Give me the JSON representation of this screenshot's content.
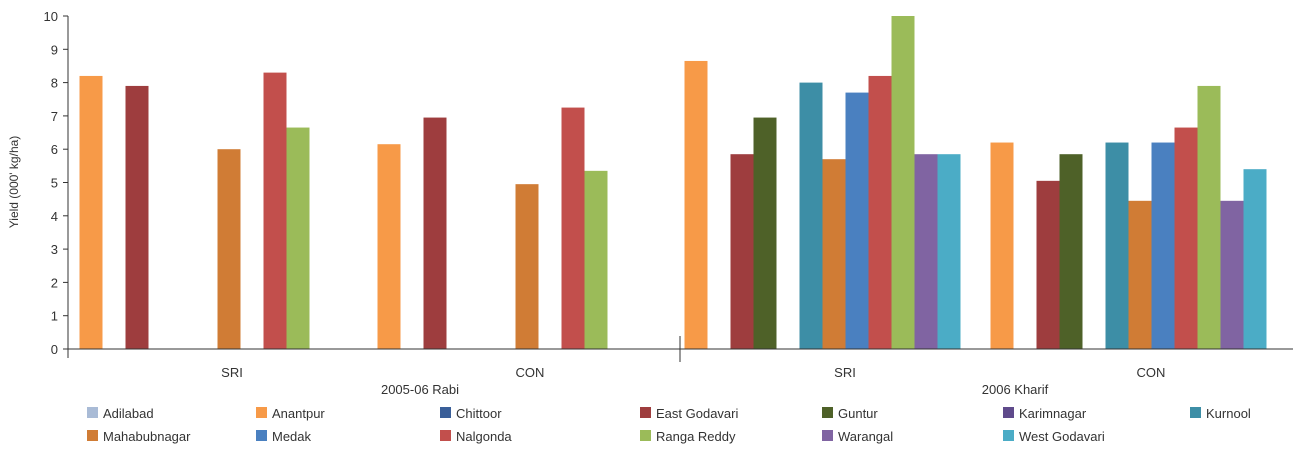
{
  "chart_data": {
    "type": "bar",
    "ylabel": "Yield (000' kg/ha)",
    "ylim": [
      0,
      10
    ],
    "yticks": [
      0,
      1,
      2,
      3,
      4,
      5,
      6,
      7,
      8,
      9,
      10
    ],
    "grid": false,
    "legend_position": "bottom",
    "groups": [
      {
        "label": "2005-06 Rabi",
        "categories": [
          "SRI",
          "CON"
        ]
      },
      {
        "label": "2006 Kharif",
        "categories": [
          "SRI",
          "CON"
        ]
      }
    ],
    "categories": [
      "SRI",
      "CON",
      "SRI",
      "CON"
    ],
    "series": [
      {
        "name": "Adilabad",
        "color": "#a9bbd6",
        "values": [
          null,
          null,
          null,
          null
        ]
      },
      {
        "name": "Anantpur",
        "color": "#f79a48",
        "values": [
          8.2,
          6.15,
          8.65,
          6.2
        ]
      },
      {
        "name": "Chittoor",
        "color": "#3a5f99",
        "values": [
          null,
          null,
          null,
          null
        ]
      },
      {
        "name": "East Godavari",
        "color": "#9e3d3e",
        "values": [
          7.9,
          6.95,
          5.85,
          5.05
        ]
      },
      {
        "name": "Guntur",
        "color": "#4e6128",
        "values": [
          null,
          null,
          6.95,
          5.85
        ]
      },
      {
        "name": "Karimnagar",
        "color": "#5f4a8b",
        "values": [
          null,
          null,
          null,
          null
        ]
      },
      {
        "name": "Kurnool",
        "color": "#3d8ea6",
        "values": [
          null,
          null,
          8.0,
          6.2
        ]
      },
      {
        "name": "Mahabubnagar",
        "color": "#d07c35",
        "values": [
          6.0,
          4.95,
          5.7,
          4.45
        ]
      },
      {
        "name": "Medak",
        "color": "#4a80c0",
        "values": [
          null,
          null,
          7.7,
          6.2
        ]
      },
      {
        "name": "Nalgonda",
        "color": "#c24f4c",
        "values": [
          8.3,
          7.25,
          8.2,
          6.65
        ]
      },
      {
        "name": "Ranga Reddy",
        "color": "#9bbb59",
        "values": [
          6.65,
          5.35,
          10.0,
          7.9
        ]
      },
      {
        "name": "Warangal",
        "color": "#8064a2",
        "values": [
          null,
          null,
          5.85,
          4.45
        ]
      },
      {
        "name": "West Godavari",
        "color": "#4bacc6",
        "values": [
          null,
          null,
          5.85,
          5.4
        ]
      }
    ]
  }
}
